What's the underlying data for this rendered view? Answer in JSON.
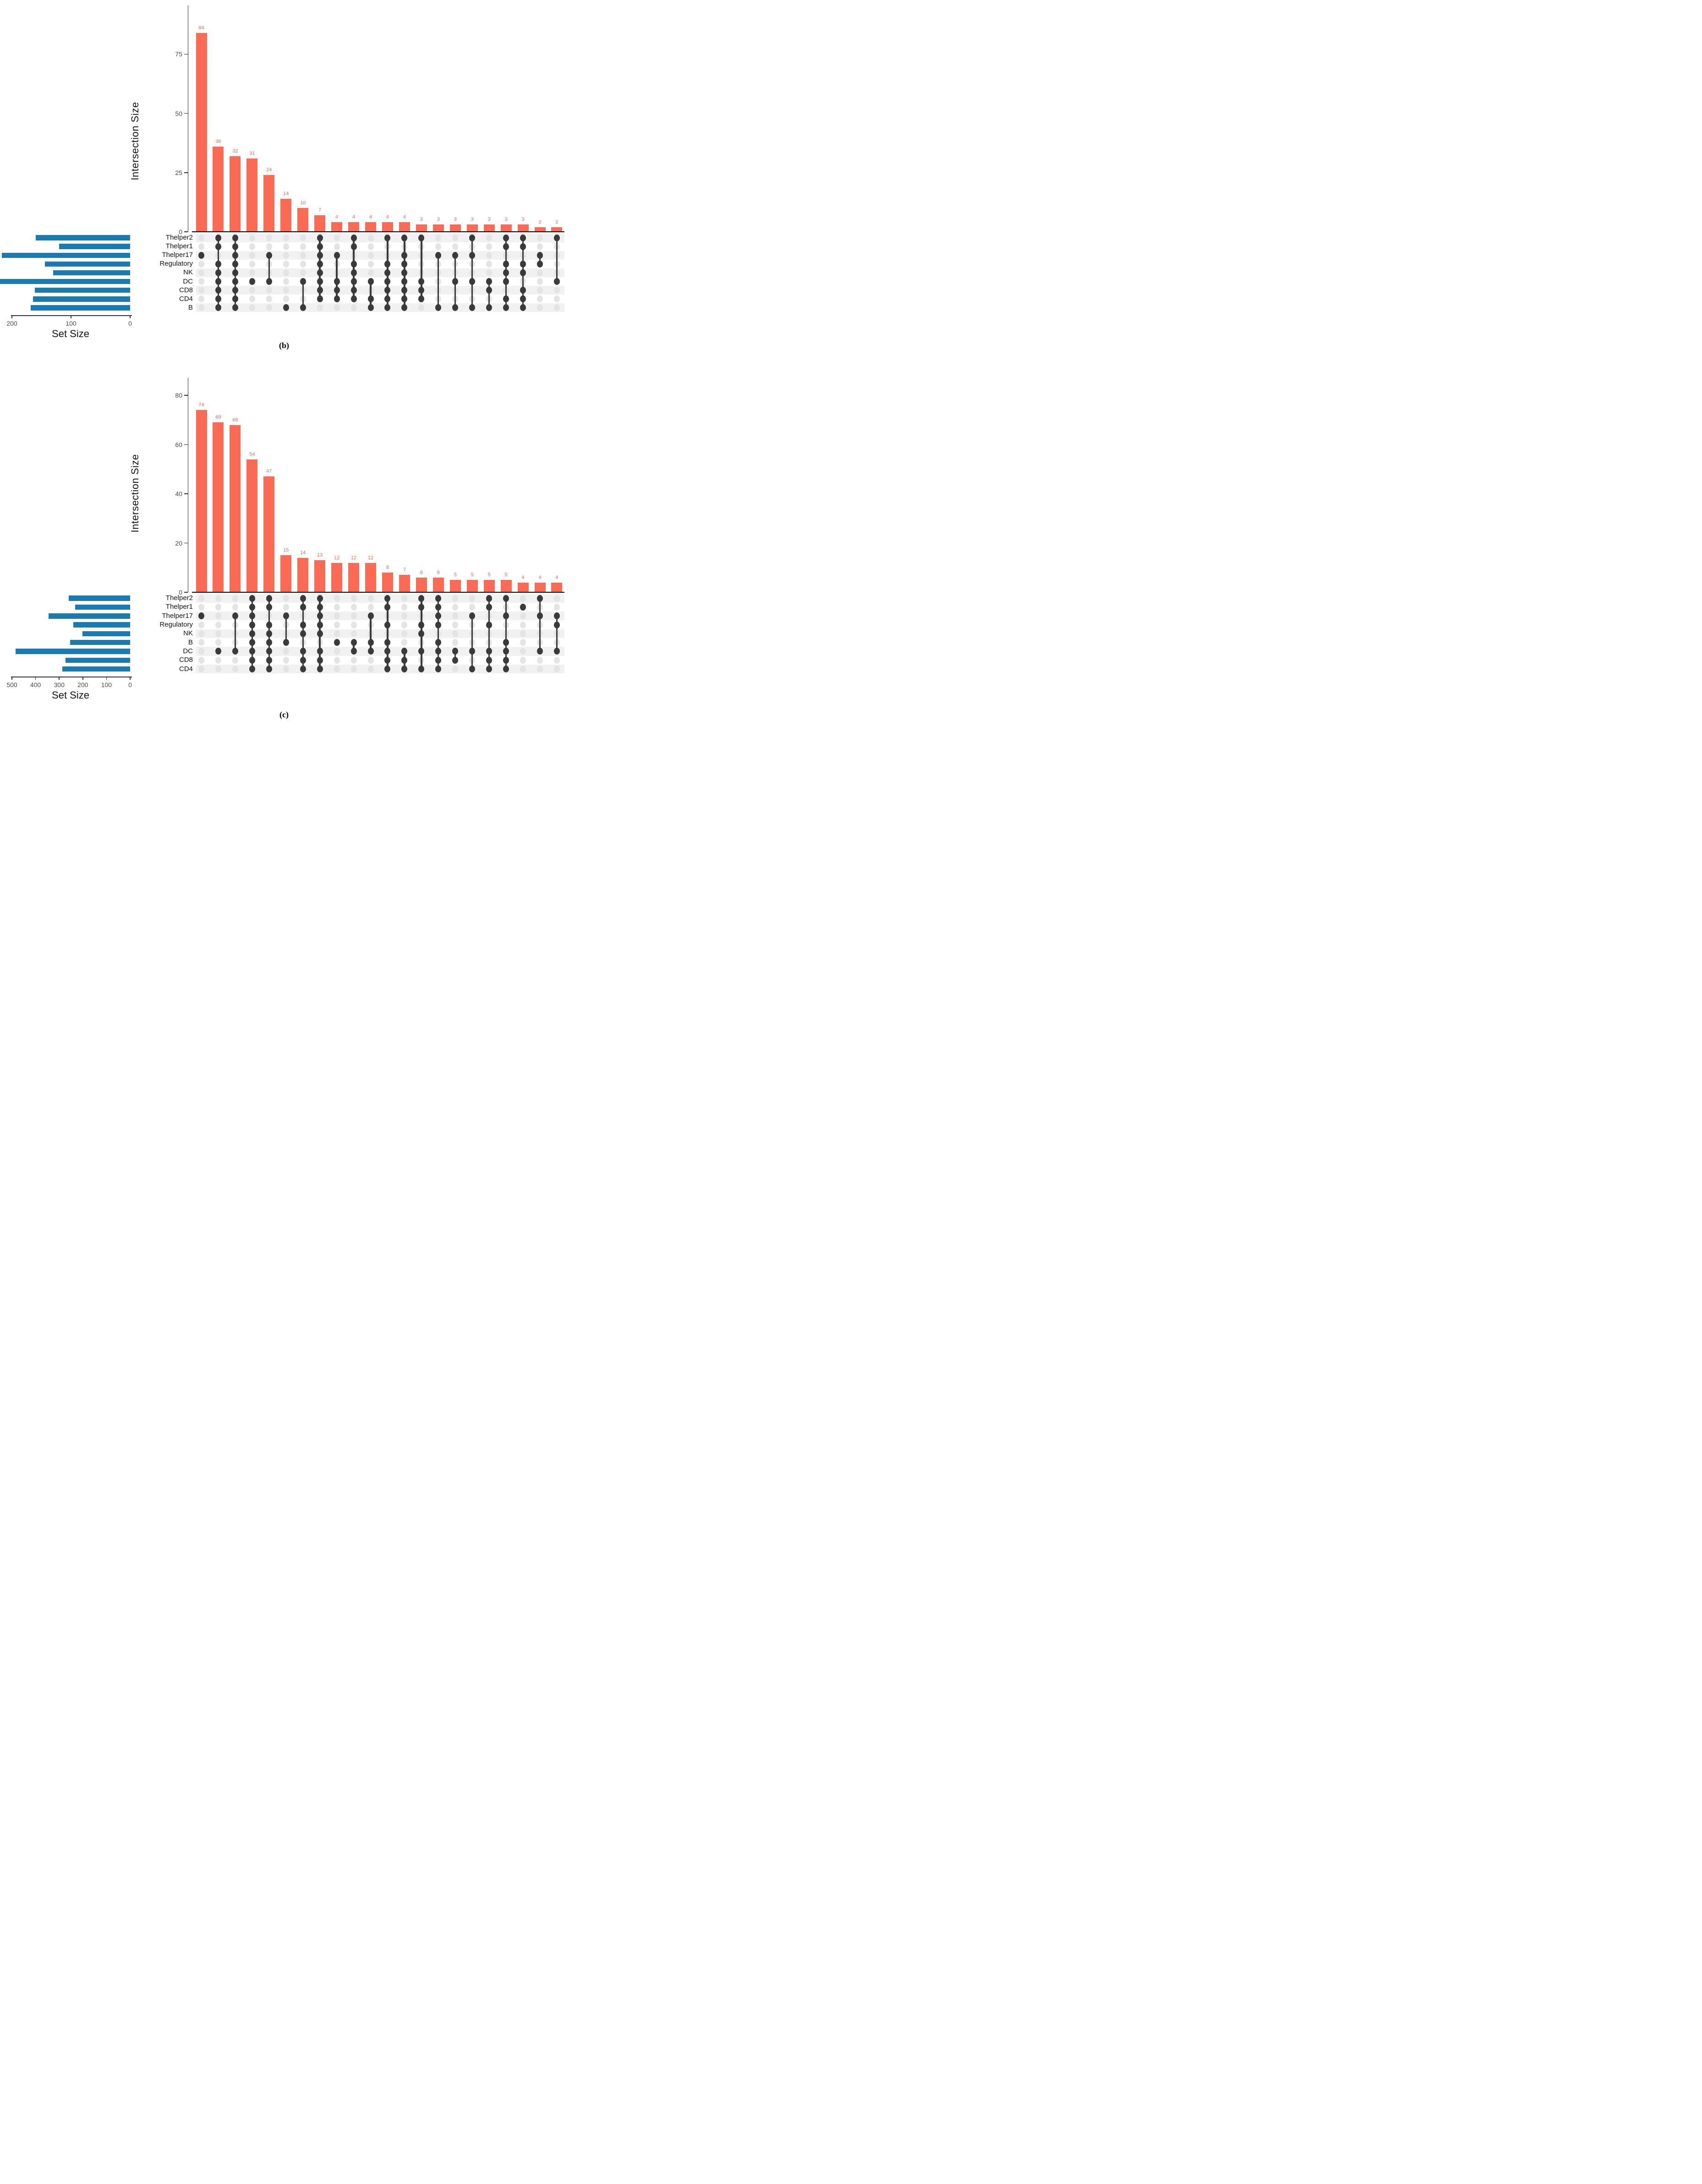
{
  "colors": {
    "bar": "#fa6a55",
    "bar_label": "#fa6a55",
    "set_bar": "#1b7ab0",
    "dot_on": "#3a3a3a",
    "dot_off": "#e4e4e4",
    "stripe": "#f1f1f1",
    "axis_line": "#333333",
    "baseline": "#000000",
    "tick_text": "#4a4a4a"
  },
  "chart_data": [
    {
      "type": "bar",
      "variant": "upset",
      "caption": "(b)",
      "ylabel": "Intersection Size",
      "set_axis_label": "Set Size",
      "grid": "off",
      "y_ticks": [
        0,
        25,
        50,
        75
      ],
      "set_ticks": [
        200,
        100,
        0
      ],
      "sets": [
        "Thelper2",
        "Thelper1",
        "Thelper17",
        "Regulatory",
        "NK",
        "DC",
        "CD8",
        "CD4",
        "B"
      ],
      "set_sizes": [
        160,
        120,
        217,
        144,
        130,
        253,
        161,
        164,
        168
      ],
      "intersection_values": [
        84,
        36,
        32,
        31,
        24,
        14,
        10,
        7,
        4,
        4,
        4,
        4,
        4,
        3,
        3,
        3,
        3,
        3,
        3,
        3,
        2,
        2
      ],
      "intersection_memberships": [
        [
          2
        ],
        [
          0,
          1,
          3,
          4,
          5,
          6,
          7,
          8
        ],
        [
          0,
          1,
          2,
          3,
          4,
          5,
          6,
          7,
          8
        ],
        [
          5
        ],
        [
          2,
          5
        ],
        [
          8
        ],
        [
          5,
          8
        ],
        [
          0,
          1,
          2,
          3,
          4,
          5,
          6,
          7
        ],
        [
          2,
          5,
          6,
          7
        ],
        [
          0,
          1,
          3,
          4,
          5,
          6,
          7
        ],
        [
          5,
          7,
          8
        ],
        [
          0,
          3,
          4,
          5,
          6,
          7,
          8
        ],
        [
          0,
          2,
          3,
          4,
          5,
          6,
          7,
          8
        ],
        [
          0,
          5,
          6,
          7
        ],
        [
          2,
          8
        ],
        [
          2,
          5,
          8
        ],
        [
          0,
          2,
          5,
          8
        ],
        [
          5,
          6,
          8
        ],
        [
          0,
          1,
          3,
          4,
          5,
          7,
          8
        ],
        [
          0,
          1,
          3,
          4,
          6,
          7,
          8
        ],
        [
          2,
          3
        ],
        [
          0,
          5
        ]
      ]
    },
    {
      "type": "bar",
      "variant": "upset",
      "caption": "(c)",
      "ylabel": "Intersection Size",
      "set_axis_label": "Set Size",
      "grid": "off",
      "y_ticks": [
        0,
        20,
        40,
        60,
        80
      ],
      "set_ticks": [
        500,
        400,
        300,
        200,
        100,
        0
      ],
      "sets": [
        "Thelper2",
        "Thelper1",
        "Thelper17",
        "Regulatory",
        "NK",
        "B",
        "DC",
        "CD8",
        "CD4"
      ],
      "set_sizes": [
        260,
        232,
        345,
        241,
        201,
        254,
        485,
        273,
        286
      ],
      "intersection_values": [
        74,
        69,
        68,
        54,
        47,
        15,
        14,
        13,
        12,
        12,
        12,
        8,
        7,
        6,
        6,
        5,
        5,
        5,
        5,
        4,
        4,
        4
      ],
      "intersection_memberships": [
        [
          2
        ],
        [
          6
        ],
        [
          2,
          6
        ],
        [
          0,
          1,
          2,
          3,
          4,
          5,
          6,
          7,
          8
        ],
        [
          0,
          1,
          3,
          4,
          5,
          6,
          7,
          8
        ],
        [
          2,
          5
        ],
        [
          0,
          1,
          3,
          4,
          6,
          7,
          8
        ],
        [
          0,
          1,
          2,
          3,
          4,
          6,
          7,
          8
        ],
        [
          5
        ],
        [
          5,
          6
        ],
        [
          2,
          5,
          6
        ],
        [
          0,
          1,
          3,
          5,
          6,
          7,
          8
        ],
        [
          6,
          7,
          8
        ],
        [
          0,
          1,
          3,
          4,
          6,
          8
        ],
        [
          0,
          1,
          2,
          3,
          5,
          6,
          7,
          8
        ],
        [
          6,
          7
        ],
        [
          2,
          6,
          8
        ],
        [
          0,
          1,
          3,
          6,
          7,
          8
        ],
        [
          0,
          2,
          5,
          6,
          7,
          8
        ],
        [
          1
        ],
        [
          0,
          2,
          6
        ],
        [
          2,
          3,
          6
        ]
      ]
    }
  ]
}
